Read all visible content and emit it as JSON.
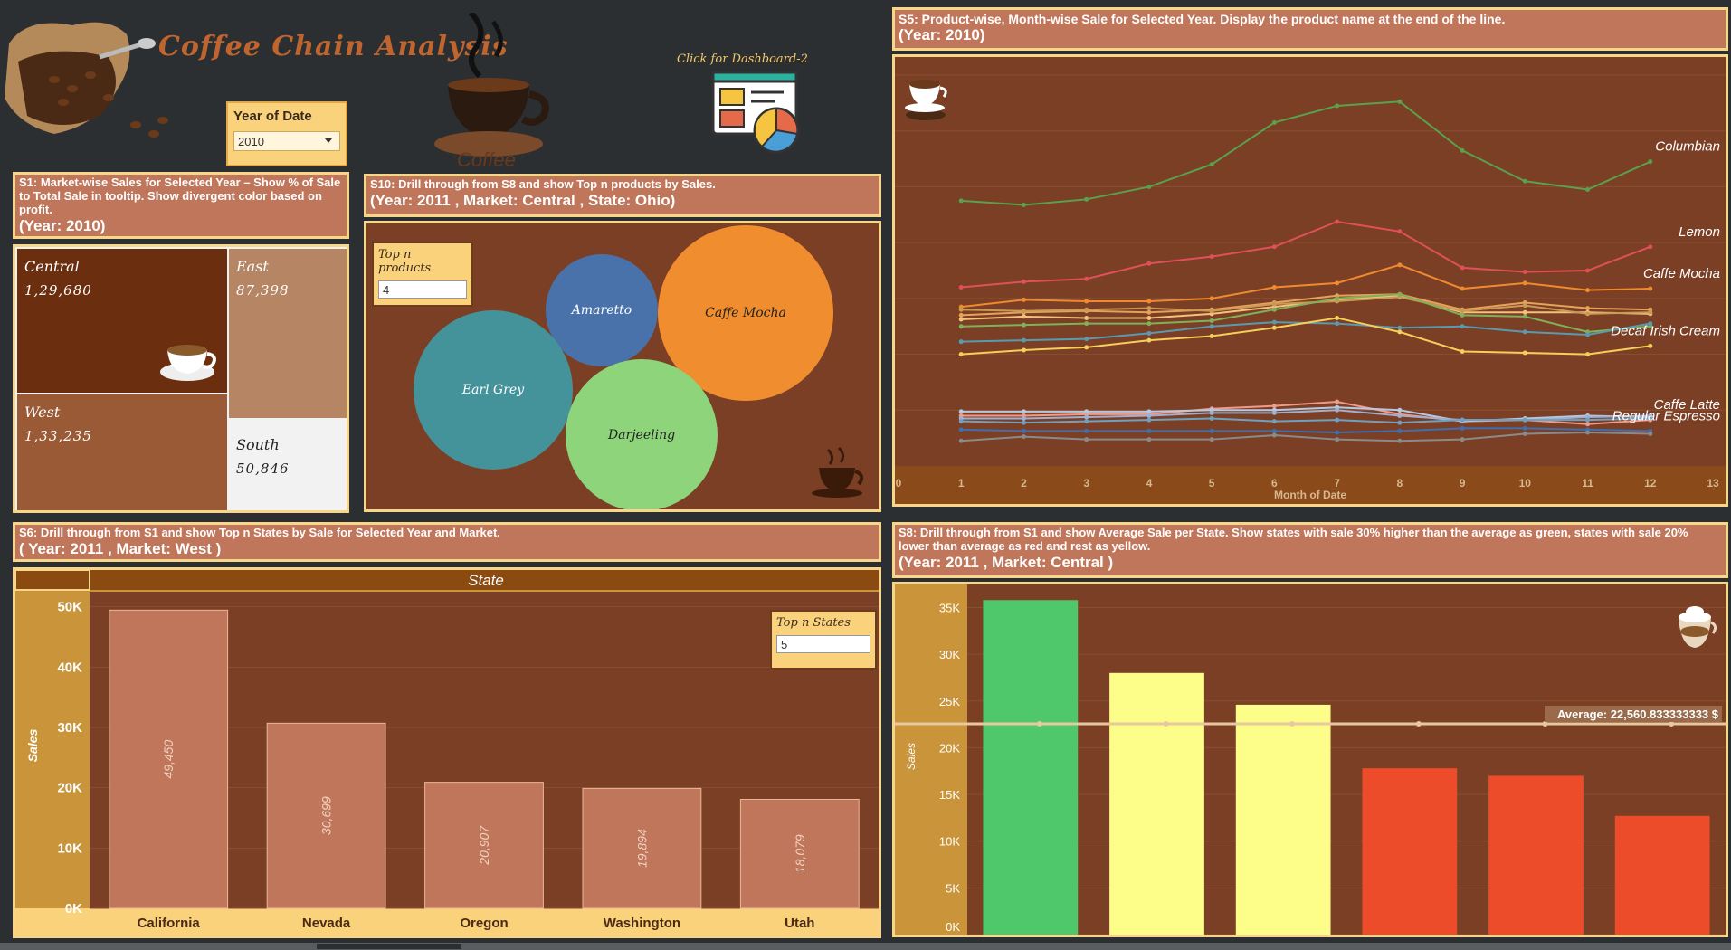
{
  "header": {
    "title": "Coffee Chain Analysis",
    "year_filter_label": "Year of Date",
    "year_filter_value": "2010",
    "dashboard_link": "Click for Dashboard-2"
  },
  "s1": {
    "desc": "S1: Market-wise Sales for Selected Year – Show % of Sale to Total Sale in tooltip. Show divergent color based on profit.",
    "sub": "(Year: 2010)",
    "markets": [
      {
        "name": "Central",
        "value": "1,29,680"
      },
      {
        "name": "East",
        "value": "87,398"
      },
      {
        "name": "West",
        "value": "1,33,235"
      },
      {
        "name": "South",
        "value": "50,846"
      }
    ]
  },
  "s10": {
    "desc": "S10: Drill through from S8 and show Top n products by Sales.",
    "sub": "(Year:  2011 , Market: Central , State: Ohio)",
    "topn_label": "Top n products",
    "topn_value": "4",
    "bubbles": [
      {
        "name": "Amaretto"
      },
      {
        "name": "Caffe Mocha"
      },
      {
        "name": "Earl Grey"
      },
      {
        "name": "Darjeeling"
      }
    ]
  },
  "s5": {
    "desc": "S5: Product-wise, Month-wise Sale for Selected Year. Display the product name at the end of the line.",
    "sub": "(Year: 2010)"
  },
  "s6": {
    "desc": "S6: Drill through from S1 and show Top n States by Sale for Selected Year and Market.",
    "sub": "( Year:  2011 , Market: West )",
    "header": "State",
    "topn_label": "Top n States",
    "topn_value": "5"
  },
  "s8": {
    "desc": "S8: Drill through from S1 and show Average Sale per State. Show states with sale 30% higher than the average as green, states with sale 20% lower than average as red and rest as yellow.",
    "sub": "(Year:  2011 , Market: Central )",
    "average_label": "Average:  22,560.833333333 $"
  },
  "chart_data": [
    {
      "type": "line",
      "x": [
        1,
        2,
        3,
        4,
        5,
        6,
        7,
        8,
        9,
        10,
        11,
        12
      ],
      "xlabel": "Month of Date",
      "xticks": [
        "0",
        "1",
        "2",
        "3",
        "4",
        "5",
        "6",
        "7",
        "8",
        "9",
        "10",
        "11",
        "12",
        "13"
      ],
      "series": [
        {
          "name": "Columbian",
          "color": "#5aa14c",
          "values": [
            950,
            935,
            955,
            1000,
            1080,
            1230,
            1290,
            1305,
            1130,
            1020,
            990,
            1090
          ]
        },
        {
          "name": "Lemon",
          "color": "#e0505a",
          "values": [
            640,
            660,
            670,
            725,
            750,
            785,
            875,
            840,
            710,
            695,
            700,
            785
          ]
        },
        {
          "name": "Caffe Mocha",
          "color": "#ef8a2e",
          "values": [
            570,
            595,
            590,
            590,
            600,
            640,
            655,
            720,
            635,
            655,
            630,
            635
          ]
        },
        {
          "color": "#e6a15a",
          "values": [
            540,
            550,
            555,
            550,
            560,
            585,
            610,
            615,
            560,
            585,
            565,
            560
          ]
        },
        {
          "color": "#f5c07a",
          "values": [
            525,
            535,
            530,
            530,
            545,
            570,
            595,
            610,
            550,
            550,
            550,
            545
          ]
        },
        {
          "color": "#c99a55",
          "values": [
            560,
            555,
            560,
            565,
            555,
            580,
            590,
            605,
            555,
            575,
            545,
            550
          ]
        },
        {
          "color": "#7fb05a",
          "values": [
            500,
            505,
            510,
            510,
            520,
            560,
            600,
            615,
            540,
            535,
            480,
            500
          ]
        },
        {
          "color": "#5a9ab0",
          "values": [
            445,
            450,
            455,
            475,
            500,
            515,
            510,
            495,
            500,
            480,
            470,
            510
          ]
        },
        {
          "name": "Decaf Irish Cream",
          "color": "#f5cf5a",
          "values": [
            400,
            415,
            425,
            450,
            465,
            495,
            530,
            480,
            410,
            405,
            400,
            430
          ]
        },
        {
          "name": "Caffe Latte",
          "color": "#f29a8a",
          "values": [
            180,
            180,
            185,
            185,
            205,
            215,
            230,
            185,
            160,
            165,
            150,
            165
          ]
        },
        {
          "color": "#b7c9e0",
          "values": [
            195,
            195,
            195,
            195,
            200,
            200,
            210,
            200,
            160,
            170,
            180,
            175
          ]
        },
        {
          "color": "#9fb0d0",
          "values": [
            170,
            170,
            175,
            180,
            190,
            190,
            200,
            180,
            165,
            165,
            175,
            180
          ]
        },
        {
          "color": "#6fa0c0",
          "values": [
            160,
            155,
            160,
            165,
            170,
            160,
            165,
            155,
            165,
            165,
            165,
            170
          ]
        },
        {
          "name": "Regular Espresso",
          "color": "#3f6fb0",
          "values": [
            130,
            125,
            125,
            125,
            125,
            125,
            120,
            125,
            135,
            135,
            130,
            125
          ]
        },
        {
          "color": "#8a8a8a",
          "values": [
            90,
            105,
            95,
            95,
            95,
            110,
            95,
            90,
            95,
            115,
            120,
            115
          ]
        }
      ],
      "ylim": [
        0,
        1400
      ],
      "grid": true
    },
    {
      "type": "bar",
      "categories": [
        "California",
        "Nevada",
        "Oregon",
        "Washington",
        "Utah"
      ],
      "values": [
        49450,
        30699,
        20907,
        19894,
        18079
      ],
      "labels": [
        "49,450",
        "30,699",
        "20,907",
        "19,894",
        "18,079"
      ],
      "ylabel": "Sales",
      "yticks": [
        "0K",
        "10K",
        "20K",
        "30K",
        "40K",
        "50K"
      ],
      "ylim": [
        0,
        50000
      ],
      "color": "#c0765a"
    },
    {
      "type": "bar",
      "categories": [
        "",
        "",
        "",
        "",
        "",
        ""
      ],
      "values": [
        35800,
        28000,
        24600,
        17800,
        17000,
        12700
      ],
      "colors": [
        "#4ec86a",
        "#fdfd8a",
        "#fdfd8a",
        "#ec4c2a",
        "#ec4c2a",
        "#ec4c2a"
      ],
      "ylabel": "Sales",
      "yticks": [
        "0K",
        "5K",
        "10K",
        "15K",
        "20K",
        "25K",
        "30K",
        "35K"
      ],
      "ylim": [
        0,
        36500
      ],
      "average": 22560.833333333
    }
  ]
}
